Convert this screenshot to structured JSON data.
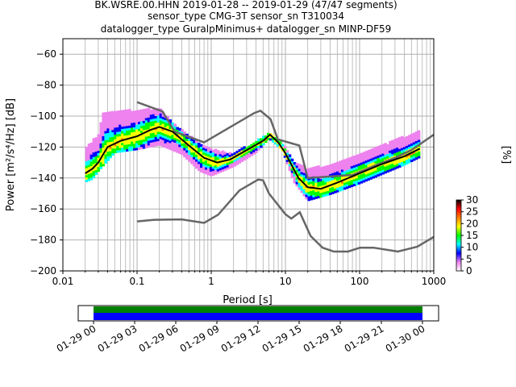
{
  "title_lines": [
    "BK.WSRE.00.HHN   2019-01-28 -- 2019-01-29  (47/47 segments)",
    "sensor_type CMG-3T sensor_sn T310034",
    "datalogger_type GuralpMinimus+ datalogger_sn MINP-DF59"
  ],
  "chart_data": {
    "type": "heatmap",
    "xlabel": "Period [s]",
    "ylabel": "Power [m²/s⁴/Hz] [dB]",
    "xscale": "log",
    "xlim": [
      0.01,
      1000
    ],
    "ylim": [
      -200,
      -50
    ],
    "x_ticks": [
      {
        "value": 0.01,
        "label": "0.01"
      },
      {
        "value": 0.1,
        "label": "0.1"
      },
      {
        "value": 1,
        "label": "1"
      },
      {
        "value": 10,
        "label": "10"
      },
      {
        "value": 100,
        "label": "100"
      },
      {
        "value": 1000,
        "label": "1000"
      }
    ],
    "y_ticks": [
      -200,
      -180,
      -160,
      -140,
      -120,
      -100,
      -80,
      -60
    ],
    "grid": true,
    "colorbar": {
      "label": "[%]",
      "min": 0,
      "max": 30,
      "ticks": [
        0,
        5,
        10,
        15,
        20,
        25,
        30
      ],
      "colors": [
        "#ffffff",
        "#ee82ee",
        "#0000ff",
        "#00ffff",
        "#00ff00",
        "#ffff00",
        "#ff8000",
        "#ff0000",
        "#000000"
      ]
    },
    "noise_models": [
      {
        "id": "high",
        "color": "#666666",
        "points": [
          [
            0.1,
            -91
          ],
          [
            0.22,
            -97
          ],
          [
            0.32,
            -110
          ],
          [
            0.8,
            -117
          ],
          [
            3.8,
            -98
          ],
          [
            4.6,
            -96.5
          ],
          [
            6.3,
            -102
          ],
          [
            7.9,
            -115
          ],
          [
            15.4,
            -119
          ],
          [
            20,
            -140
          ],
          [
            80,
            -138
          ],
          [
            160,
            -132
          ],
          [
            300,
            -127
          ],
          [
            500,
            -122
          ],
          [
            1000,
            -112
          ]
        ]
      },
      {
        "id": "low",
        "color": "#666666",
        "points": [
          [
            0.1,
            -168
          ],
          [
            0.17,
            -167
          ],
          [
            0.4,
            -166.7
          ],
          [
            0.8,
            -169
          ],
          [
            1.24,
            -163.7
          ],
          [
            2.4,
            -148
          ],
          [
            4.3,
            -141
          ],
          [
            5,
            -141.5
          ],
          [
            6,
            -150
          ],
          [
            10,
            -163.4
          ],
          [
            12,
            -166.2
          ],
          [
            15.6,
            -162.1
          ],
          [
            21.9,
            -177.5
          ],
          [
            31.6,
            -185
          ],
          [
            45,
            -187.5
          ],
          [
            70,
            -187.5
          ],
          [
            101,
            -185
          ],
          [
            154,
            -185
          ],
          [
            328,
            -187.5
          ],
          [
            600,
            -184.4
          ],
          [
            1000,
            -178
          ]
        ]
      },
      {
        "id": "mode",
        "color": "#000000",
        "points": [
          [
            0.02,
            -137
          ],
          [
            0.025,
            -134
          ],
          [
            0.03,
            -130
          ],
          [
            0.04,
            -120
          ],
          [
            0.06,
            -116
          ],
          [
            0.1,
            -113
          ],
          [
            0.15,
            -109
          ],
          [
            0.2,
            -107
          ],
          [
            0.3,
            -110
          ],
          [
            0.5,
            -119
          ],
          [
            0.8,
            -127
          ],
          [
            1.2,
            -130
          ],
          [
            1.8,
            -128
          ],
          [
            3,
            -122
          ],
          [
            5,
            -116
          ],
          [
            6.2,
            -112
          ],
          [
            8,
            -117
          ],
          [
            10,
            -124
          ],
          [
            15,
            -140
          ],
          [
            20,
            -146
          ],
          [
            30,
            -147
          ],
          [
            50,
            -143
          ],
          [
            100,
            -137
          ],
          [
            200,
            -131
          ],
          [
            400,
            -126
          ],
          [
            650,
            -121
          ]
        ]
      }
    ],
    "pdf_band": {
      "upper": [
        [
          0.02,
          -120
        ],
        [
          0.03,
          -112
        ],
        [
          0.035,
          -97
        ],
        [
          0.2,
          -95
        ],
        [
          0.3,
          -104
        ],
        [
          0.5,
          -112
        ],
        [
          0.7,
          -117
        ],
        [
          1,
          -121
        ],
        [
          2,
          -124
        ],
        [
          4,
          -116
        ],
        [
          6,
          -111
        ],
        [
          9,
          -117
        ],
        [
          13,
          -129
        ],
        [
          20,
          -134
        ],
        [
          40,
          -131
        ],
        [
          100,
          -124
        ],
        [
          200,
          -119
        ],
        [
          400,
          -113
        ],
        [
          650,
          -109
        ]
      ],
      "lower": [
        [
          0.02,
          -142
        ],
        [
          0.025,
          -140
        ],
        [
          0.03,
          -135
        ],
        [
          0.05,
          -123
        ],
        [
          0.1,
          -121
        ],
        [
          0.2,
          -118
        ],
        [
          0.4,
          -124
        ],
        [
          0.7,
          -135
        ],
        [
          1,
          -138
        ],
        [
          2,
          -132
        ],
        [
          4,
          -123
        ],
        [
          6,
          -114
        ],
        [
          9,
          -121
        ],
        [
          13,
          -142
        ],
        [
          20,
          -154
        ],
        [
          40,
          -150
        ],
        [
          100,
          -143
        ],
        [
          200,
          -137
        ],
        [
          400,
          -131
        ],
        [
          650,
          -126
        ]
      ]
    },
    "time_axis": {
      "tick_labels": [
        "01-29 00",
        "01-29 03",
        "01-29 06",
        "01-29 09",
        "01-29 12",
        "01-29 15",
        "01-29 18",
        "01-29 21",
        "01-30 00"
      ],
      "coverage_bars": [
        {
          "name": "green",
          "color": "#008000"
        },
        {
          "name": "blue",
          "color": "#0000ff"
        }
      ]
    }
  }
}
